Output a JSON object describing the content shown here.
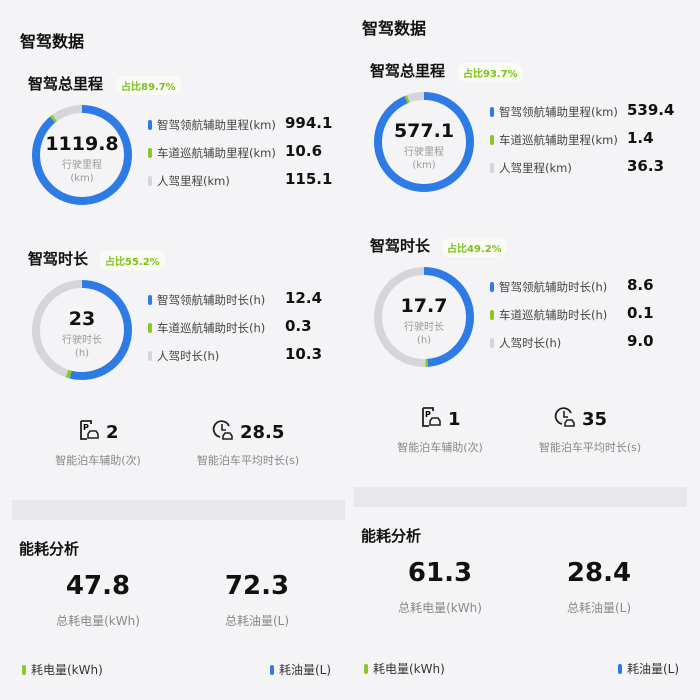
{
  "colors": {
    "blue": "#2f7be6",
    "green": "#8cc823",
    "gray": "#d6d6d8"
  },
  "panels": [
    {
      "title": "智驾数据",
      "mileage": {
        "title": "智驾总里程",
        "badge": "占比89.7%",
        "total": "1119.8",
        "center_label": "行驶里程",
        "center_unit": "(km)",
        "items": [
          {
            "label": "智驾领航辅助里程(km)",
            "value": "994.1",
            "color": "blue",
            "amount": 994.1
          },
          {
            "label": "车道巡航辅助里程(km)",
            "value": "10.6",
            "color": "green",
            "amount": 10.6
          },
          {
            "label": "人驾里程(km)",
            "value": "115.1",
            "color": "gray",
            "amount": 115.1
          }
        ]
      },
      "duration": {
        "title": "智驾时长",
        "badge": "占比55.2%",
        "total": "23",
        "center_label": "行驶时长",
        "center_unit": "(h)",
        "items": [
          {
            "label": "智驾领航辅助时长(h)",
            "value": "12.4",
            "color": "blue",
            "amount": 12.4
          },
          {
            "label": "车道巡航辅助时长(h)",
            "value": "0.3",
            "color": "green",
            "amount": 0.3
          },
          {
            "label": "人驾时长(h)",
            "value": "10.3",
            "color": "gray",
            "amount": 10.3
          }
        ]
      },
      "parking": {
        "count": "2",
        "count_label": "智能泊车辅助(次)",
        "avg": "28.5",
        "avg_label": "智能泊车平均时长(s)"
      },
      "energy": {
        "title": "能耗分析",
        "electric": "47.8",
        "electric_label": "总耗电量(kWh)",
        "fuel": "72.3",
        "fuel_label": "总耗油量(L)",
        "legend_electric": "耗电量(kWh)",
        "legend_fuel": "耗油量(L)"
      }
    },
    {
      "title": "智驾数据",
      "mileage": {
        "title": "智驾总里程",
        "badge": "占比93.7%",
        "total": "577.1",
        "center_label": "行驶里程",
        "center_unit": "(km)",
        "items": [
          {
            "label": "智驾领航辅助里程(km)",
            "value": "539.4",
            "color": "blue",
            "amount": 539.4
          },
          {
            "label": "车道巡航辅助里程(km)",
            "value": "1.4",
            "color": "green",
            "amount": 1.4
          },
          {
            "label": "人驾里程(km)",
            "value": "36.3",
            "color": "gray",
            "amount": 36.3
          }
        ]
      },
      "duration": {
        "title": "智驾时长",
        "badge": "占比49.2%",
        "total": "17.7",
        "center_label": "行驶时长",
        "center_unit": "(h)",
        "items": [
          {
            "label": "智驾领航辅助时长(h)",
            "value": "8.6",
            "color": "blue",
            "amount": 8.6
          },
          {
            "label": "车道巡航辅助时长(h)",
            "value": "0.1",
            "color": "green",
            "amount": 0.1
          },
          {
            "label": "人驾时长(h)",
            "value": "9.0",
            "color": "gray",
            "amount": 9.0
          }
        ]
      },
      "parking": {
        "count": "1",
        "count_label": "智能泊车辅助(次)",
        "avg": "35",
        "avg_label": "智能泊车平均时长(s)"
      },
      "energy": {
        "title": "能耗分析",
        "electric": "61.3",
        "electric_label": "总耗电量(kWh)",
        "fuel": "28.4",
        "fuel_label": "总耗油量(L)",
        "legend_electric": "耗电量(kWh)",
        "legend_fuel": "耗油量(L)"
      }
    }
  ]
}
